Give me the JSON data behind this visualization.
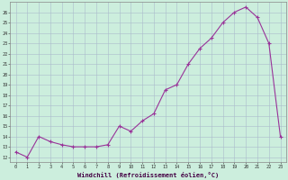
{
  "x": [
    0,
    1,
    2,
    3,
    4,
    5,
    6,
    7,
    8,
    9,
    10,
    11,
    12,
    13,
    14,
    15,
    16,
    17,
    18,
    19,
    20,
    21,
    22,
    23
  ],
  "y": [
    12.5,
    12.0,
    14.0,
    13.5,
    13.2,
    13.0,
    13.0,
    13.0,
    13.2,
    15.0,
    14.5,
    15.5,
    16.2,
    18.5,
    19.0,
    21.0,
    22.5,
    23.5,
    25.0,
    26.0,
    26.5,
    25.5,
    23.0,
    14.0
  ],
  "line_color": "#993399",
  "marker": "+",
  "bg_color": "#cceedd",
  "grid_color": "#aabbcc",
  "xlabel": "Windchill (Refroidissement éolien,°C)",
  "ylabel_ticks": [
    12,
    13,
    14,
    15,
    16,
    17,
    18,
    19,
    20,
    21,
    22,
    23,
    24,
    25,
    26
  ],
  "xticks": [
    0,
    1,
    2,
    3,
    4,
    5,
    6,
    7,
    8,
    9,
    10,
    11,
    12,
    13,
    14,
    15,
    16,
    17,
    18,
    19,
    20,
    21,
    22,
    23
  ],
  "ylim": [
    11.5,
    27.0
  ],
  "xlim": [
    -0.5,
    23.5
  ]
}
